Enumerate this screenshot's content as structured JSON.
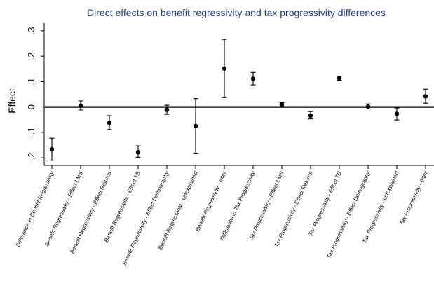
{
  "chart_data": {
    "type": "scatter",
    "title": "Direct effects on benefit regressivity and tax progressivity differences",
    "ylabel": "Effect",
    "xlabel": "",
    "ylim": [
      -0.23,
      0.33
    ],
    "yticks": [
      {
        "value": 0.3,
        "label": ".3"
      },
      {
        "value": 0.2,
        "label": ".2"
      },
      {
        "value": 0.1,
        "label": ".1"
      },
      {
        "value": 0.0,
        "label": "0"
      },
      {
        "value": -0.1,
        "label": "-.1"
      },
      {
        "value": -0.2,
        "label": "-.2"
      }
    ],
    "reference_line": 0,
    "grid": false,
    "categories": [
      "Difference in Benefit Regressivity",
      "Benefit Regressivity - Effect LMS",
      "Benefit Regressivity - Effect Returns",
      "Benefit Regressivity - Effect TB",
      "Benefit Regressivity - Effect Demography",
      "Benefit Regressivity - Unexplained",
      "Benefit Regressivity - Inter",
      "Difference in Tax Progressivity",
      "Tax Progressivity - Effect LMS",
      "Tax Progressivity - Effect Returns",
      "Tax Progressivity - Effect TB",
      "Tax Progressivity - Effect Demography",
      "Tax Progressivity - Unexplained",
      "Tax Progressivity - Inter"
    ],
    "estimates": [
      -0.167,
      0.005,
      -0.062,
      -0.178,
      -0.011,
      -0.075,
      0.151,
      0.111,
      0.009,
      -0.034,
      0.113,
      0.002,
      -0.027,
      0.042
    ],
    "ci_low": [
      -0.212,
      -0.012,
      -0.089,
      -0.198,
      -0.029,
      -0.182,
      0.037,
      0.087,
      0.002,
      -0.047,
      0.105,
      -0.008,
      -0.051,
      0.015
    ],
    "ci_high": [
      -0.123,
      0.024,
      -0.034,
      -0.153,
      0.007,
      0.033,
      0.266,
      0.136,
      0.017,
      -0.018,
      0.121,
      0.012,
      -0.004,
      0.07
    ]
  }
}
